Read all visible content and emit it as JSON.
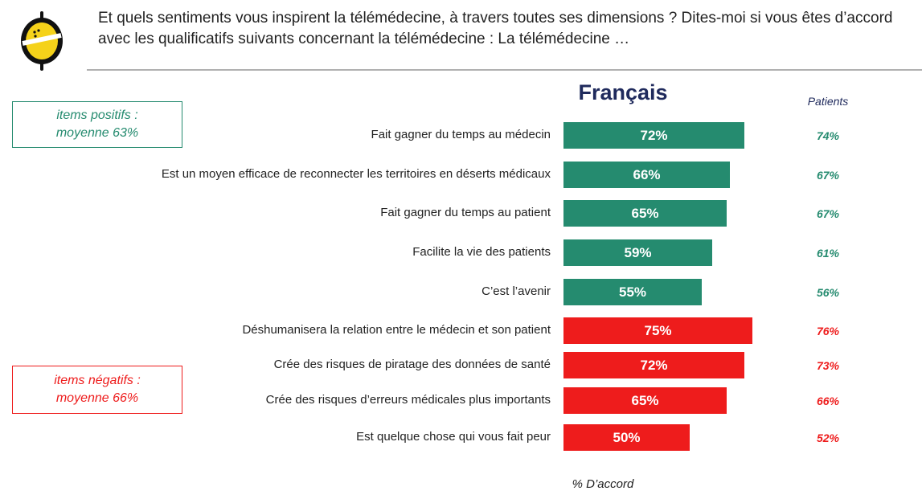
{
  "header": {
    "title": "Et quels sentiments vous inspirent la télémédecine, à travers toutes ses dimensions ? Dites-moi si vous êtes d’accord avec les qualificatifs suivants concernant la télémédecine : La télémédecine …"
  },
  "legend": {
    "positive": "items positifs :\nmoyenne 63%",
    "negative": "items négatifs :\nmoyenne 66%"
  },
  "footer_note": "% D’accord",
  "colors": {
    "positive": "#258b6f",
    "negative": "#ee1c1c",
    "title": "#1f2a5c",
    "logo_yellow": "#f5d21a"
  },
  "chart_data": {
    "type": "bar",
    "orientation": "horizontal",
    "title": "Français",
    "secondary_column_title": "Patients",
    "xlabel": "% D’accord",
    "xlim": [
      0,
      100
    ],
    "categories": [
      "Fait gagner du temps au médecin",
      "Est un moyen efficace de reconnecter les territoires en déserts médicaux",
      "Fait gagner du temps au patient",
      "Facilite la vie des patients",
      "C’est l’avenir",
      "Déshumanisera la relation entre le médecin et son patient",
      "Crée des risques de piratage des données de santé",
      "Crée des risques d’erreurs médicales plus importants",
      "Est quelque chose qui vous fait peur"
    ],
    "series": [
      {
        "name": "Français",
        "values": [
          72,
          66,
          65,
          59,
          55,
          75,
          72,
          65,
          50
        ],
        "labels": [
          "72%",
          "66%",
          "65%",
          "59%",
          "55%",
          "75%",
          "72%",
          "65%",
          "50%"
        ]
      },
      {
        "name": "Patients",
        "values": [
          74,
          67,
          67,
          61,
          56,
          76,
          73,
          66,
          52
        ],
        "labels": [
          "74%",
          "67%",
          "67%",
          "61%",
          "56%",
          "76%",
          "73%",
          "66%",
          "52%"
        ]
      }
    ],
    "groups": [
      "positive",
      "positive",
      "positive",
      "positive",
      "positive",
      "negative",
      "negative",
      "negative",
      "negative"
    ],
    "legend": "none",
    "grid": false
  }
}
